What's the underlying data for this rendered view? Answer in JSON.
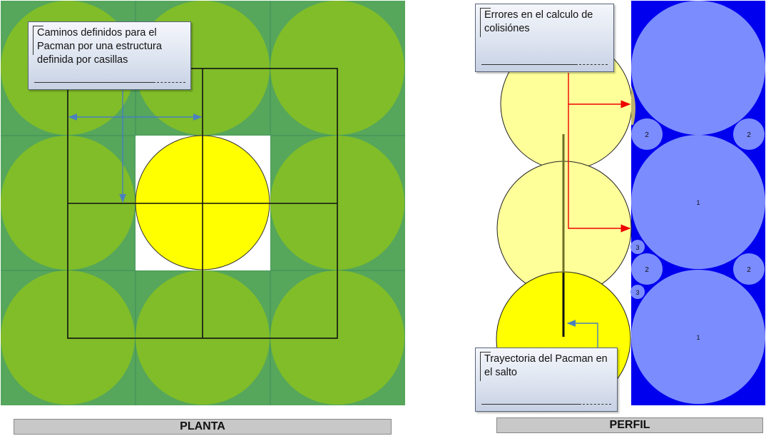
{
  "planta": {
    "callout": "Caminos definidos para el Pacman por una estructura definida por casillas",
    "label": "PLANTA"
  },
  "perfil": {
    "callout_top": "Errores en el calculo de colisiónes",
    "callout_bottom": "Trayectoria del Pacman en el salto",
    "label": "PERFIL",
    "circle_numbers": {
      "small_top_left": "2",
      "small_top_right": "2",
      "big_middle": "1",
      "tiny_a": "3",
      "small_mid_left": "2",
      "small_mid_right": "2",
      "tiny_b": "3",
      "big_bottom": "1"
    }
  },
  "colors": {
    "ground_green": "#56a65c",
    "grid_green": "#4a9a58",
    "tile_circle": "#80bd28",
    "pacman_yellow": "#ffff00",
    "pale_yellow": "#ffff9a",
    "wall_blue": "#0000ee",
    "wall_circle": "#7b8cff",
    "arrow_red": "#ee0000",
    "arrow_blue": "#4a7fc0"
  }
}
